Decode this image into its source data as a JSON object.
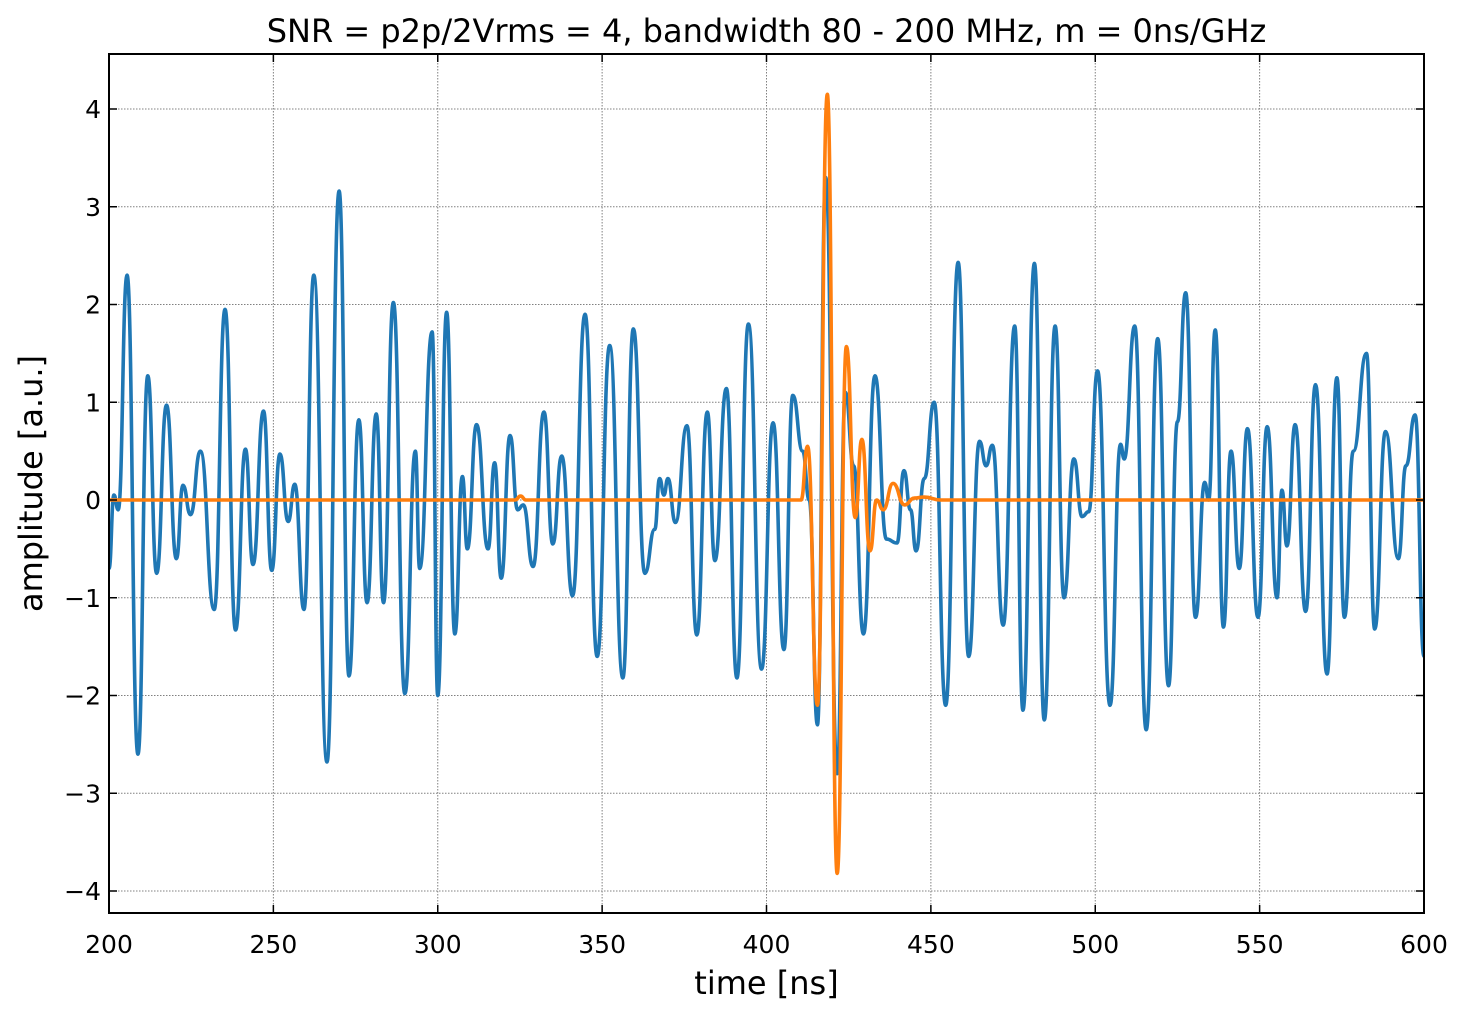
{
  "chart_data": {
    "type": "line",
    "title": "SNR = p2p/2Vrms = 4, bandwidth 80 - 200 MHz, m = 0ns/GHz",
    "xlabel": "time [ns]",
    "ylabel": "amplitude [a.u.]",
    "xlim": [
      200,
      600
    ],
    "ylim": [
      -4.2,
      4.55
    ],
    "xticks": [
      200,
      250,
      300,
      350,
      400,
      450,
      500,
      550,
      600
    ],
    "xtick_labels": [
      "200",
      "250",
      "300",
      "350",
      "400",
      "450",
      "500",
      "550",
      "600"
    ],
    "yticks": [
      -4,
      -3,
      -2,
      -1,
      0,
      1,
      2,
      3,
      4
    ],
    "ytick_labels": [
      "−4",
      "−3",
      "−2",
      "−1",
      "0",
      "1",
      "2",
      "3",
      "4"
    ],
    "grid": true,
    "series": [
      {
        "color": "#1f77b4",
        "points": [
          [
            200,
            -0.7
          ],
          [
            201.5,
            0.05
          ],
          [
            202.8,
            -0.1
          ],
          [
            205.5,
            2.3
          ],
          [
            208.8,
            -2.6
          ],
          [
            211.8,
            1.27
          ],
          [
            214.5,
            -0.75
          ],
          [
            217.5,
            0.97
          ],
          [
            220.5,
            -0.6
          ],
          [
            222.5,
            0.15
          ],
          [
            224.8,
            -0.15
          ],
          [
            227.8,
            0.5
          ],
          [
            232,
            -1.12
          ],
          [
            235.3,
            1.95
          ],
          [
            238.5,
            -1.33
          ],
          [
            241.5,
            0.52
          ],
          [
            243.8,
            -0.66
          ],
          [
            247,
            0.91
          ],
          [
            249.5,
            -0.72
          ],
          [
            252,
            0.47
          ],
          [
            254.5,
            -0.22
          ],
          [
            256.5,
            0.16
          ],
          [
            259.3,
            -1.12
          ],
          [
            262.3,
            2.3
          ],
          [
            266.3,
            -2.68
          ],
          [
            270,
            3.16
          ],
          [
            273,
            -1.8
          ],
          [
            276,
            0.82
          ],
          [
            278.5,
            -1.05
          ],
          [
            281.3,
            0.88
          ],
          [
            283.5,
            -1.05
          ],
          [
            286.5,
            2.02
          ],
          [
            290,
            -1.98
          ],
          [
            293.2,
            0.5
          ],
          [
            294.5,
            -0.7
          ],
          [
            298.3,
            1.72
          ],
          [
            300,
            -2.0
          ],
          [
            302.7,
            1.92
          ],
          [
            305.2,
            -1.37
          ],
          [
            307.5,
            0.24
          ],
          [
            309,
            -0.5
          ],
          [
            311.8,
            0.77
          ],
          [
            315.3,
            -0.5
          ],
          [
            317.3,
            0.38
          ],
          [
            319.3,
            -0.8
          ],
          [
            322,
            0.66
          ],
          [
            324.3,
            -0.1
          ],
          [
            326,
            -0.05
          ],
          [
            329,
            -0.68
          ],
          [
            332.3,
            0.9
          ],
          [
            335,
            -0.45
          ],
          [
            337.7,
            0.45
          ],
          [
            341,
            -0.98
          ],
          [
            344.8,
            1.9
          ],
          [
            348.5,
            -1.6
          ],
          [
            352.3,
            1.58
          ],
          [
            356.3,
            -1.82
          ],
          [
            359.5,
            1.75
          ],
          [
            363,
            -0.75
          ],
          [
            366,
            -0.3
          ],
          [
            367.5,
            0.22
          ],
          [
            368.8,
            0.05
          ],
          [
            370,
            0.22
          ],
          [
            372.3,
            -0.23
          ],
          [
            375.8,
            0.76
          ],
          [
            378.8,
            -1.38
          ],
          [
            382,
            0.9
          ],
          [
            384.3,
            -0.62
          ],
          [
            387.8,
            1.14
          ],
          [
            391,
            -1.82
          ],
          [
            394.5,
            1.8
          ],
          [
            398.5,
            -1.73
          ],
          [
            402,
            0.79
          ],
          [
            405.3,
            -1.53
          ],
          [
            408,
            1.07
          ],
          [
            411,
            0.5
          ],
          [
            413,
            0.0
          ],
          [
            415.5,
            -2.3
          ],
          [
            418,
            3.3
          ],
          [
            421.5,
            -2.8
          ],
          [
            424,
            1.1
          ],
          [
            426.5,
            0.35
          ],
          [
            429.5,
            -1.37
          ],
          [
            433,
            1.27
          ],
          [
            436.5,
            -0.4
          ],
          [
            439.7,
            -0.44
          ],
          [
            441.8,
            0.3
          ],
          [
            443.8,
            -0.1
          ],
          [
            445.5,
            -0.52
          ],
          [
            448,
            0.22
          ],
          [
            451,
            1.0
          ],
          [
            454.5,
            -2.1
          ],
          [
            458.3,
            2.43
          ],
          [
            461.5,
            -1.6
          ],
          [
            464.8,
            0.6
          ],
          [
            466.8,
            0.35
          ],
          [
            468.7,
            0.56
          ],
          [
            472,
            -1.28
          ],
          [
            475.5,
            1.78
          ],
          [
            478,
            -2.15
          ],
          [
            481.5,
            2.42
          ],
          [
            484.5,
            -2.25
          ],
          [
            487.8,
            1.78
          ],
          [
            490.5,
            -1.0
          ],
          [
            493.5,
            0.42
          ],
          [
            496,
            -0.17
          ],
          [
            498,
            -0.12
          ],
          [
            500.7,
            1.32
          ],
          [
            504.5,
            -2.1
          ],
          [
            507.7,
            0.57
          ],
          [
            508.8,
            0.42
          ],
          [
            512,
            1.78
          ],
          [
            515.5,
            -2.35
          ],
          [
            519,
            1.65
          ],
          [
            522.3,
            -1.9
          ],
          [
            525,
            0.8
          ],
          [
            527.5,
            2.12
          ],
          [
            530.5,
            -1.2
          ],
          [
            533.3,
            0.18
          ],
          [
            534.5,
            0.0
          ],
          [
            536.5,
            1.74
          ],
          [
            539,
            -1.3
          ],
          [
            541.3,
            0.5
          ],
          [
            543.8,
            -0.7
          ],
          [
            546.3,
            0.73
          ],
          [
            549.5,
            -1.2
          ],
          [
            552.3,
            0.75
          ],
          [
            555.3,
            -1.0
          ],
          [
            556.8,
            0.1
          ],
          [
            558.3,
            -0.47
          ],
          [
            560.8,
            0.77
          ],
          [
            564,
            -1.14
          ],
          [
            567,
            1.18
          ],
          [
            570.5,
            -1.78
          ],
          [
            573.5,
            1.25
          ],
          [
            575.8,
            -1.2
          ],
          [
            578.5,
            0.5
          ],
          [
            582.5,
            1.5
          ],
          [
            585,
            -1.32
          ],
          [
            588.3,
            0.7
          ],
          [
            592.2,
            -0.6
          ],
          [
            594.5,
            0.35
          ],
          [
            597.3,
            0.87
          ],
          [
            600,
            -1.6
          ]
        ]
      },
      {
        "color": "#ff7f0e",
        "points": [
          [
            200,
            0.0
          ],
          [
            323.5,
            0.0
          ],
          [
            325.2,
            0.04
          ],
          [
            326.8,
            0.0
          ],
          [
            410.5,
            0.0
          ],
          [
            412.5,
            0.55
          ],
          [
            415.5,
            -2.1
          ],
          [
            418.5,
            4.15
          ],
          [
            421.5,
            -3.82
          ],
          [
            424.3,
            1.57
          ],
          [
            427,
            -0.18
          ],
          [
            429,
            0.62
          ],
          [
            431.5,
            -0.52
          ],
          [
            433.5,
            0.0
          ],
          [
            435.5,
            -0.1
          ],
          [
            438.5,
            0.17
          ],
          [
            442,
            -0.05
          ],
          [
            445,
            0.02
          ],
          [
            448,
            0.03
          ],
          [
            453,
            0.0
          ],
          [
            600,
            0.0
          ]
        ]
      }
    ]
  }
}
